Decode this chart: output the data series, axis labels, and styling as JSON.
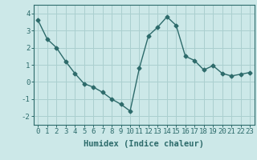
{
  "x": [
    0,
    1,
    2,
    3,
    4,
    5,
    6,
    7,
    8,
    9,
    10,
    11,
    12,
    13,
    14,
    15,
    16,
    17,
    18,
    19,
    20,
    21,
    22,
    23
  ],
  "y": [
    3.6,
    2.5,
    2.0,
    1.2,
    0.5,
    -0.1,
    -0.3,
    -0.6,
    -1.0,
    -1.3,
    -1.7,
    0.8,
    2.7,
    3.2,
    3.8,
    3.3,
    1.5,
    1.25,
    0.7,
    0.95,
    0.5,
    0.35,
    0.45,
    0.55
  ],
  "line_color": "#2d6b6b",
  "marker": "D",
  "marker_size": 2.5,
  "bg_color": "#cce8e8",
  "grid_color": "#aacfcf",
  "xlabel": "Humidex (Indice chaleur)",
  "xlim": [
    -0.5,
    23.5
  ],
  "ylim": [
    -2.5,
    4.5
  ],
  "xticks": [
    0,
    1,
    2,
    3,
    4,
    5,
    6,
    7,
    8,
    9,
    10,
    11,
    12,
    13,
    14,
    15,
    16,
    17,
    18,
    19,
    20,
    21,
    22,
    23
  ],
  "yticks": [
    -2,
    -1,
    0,
    1,
    2,
    3,
    4
  ],
  "xlabel_fontsize": 7.5,
  "tick_fontsize": 6.5
}
